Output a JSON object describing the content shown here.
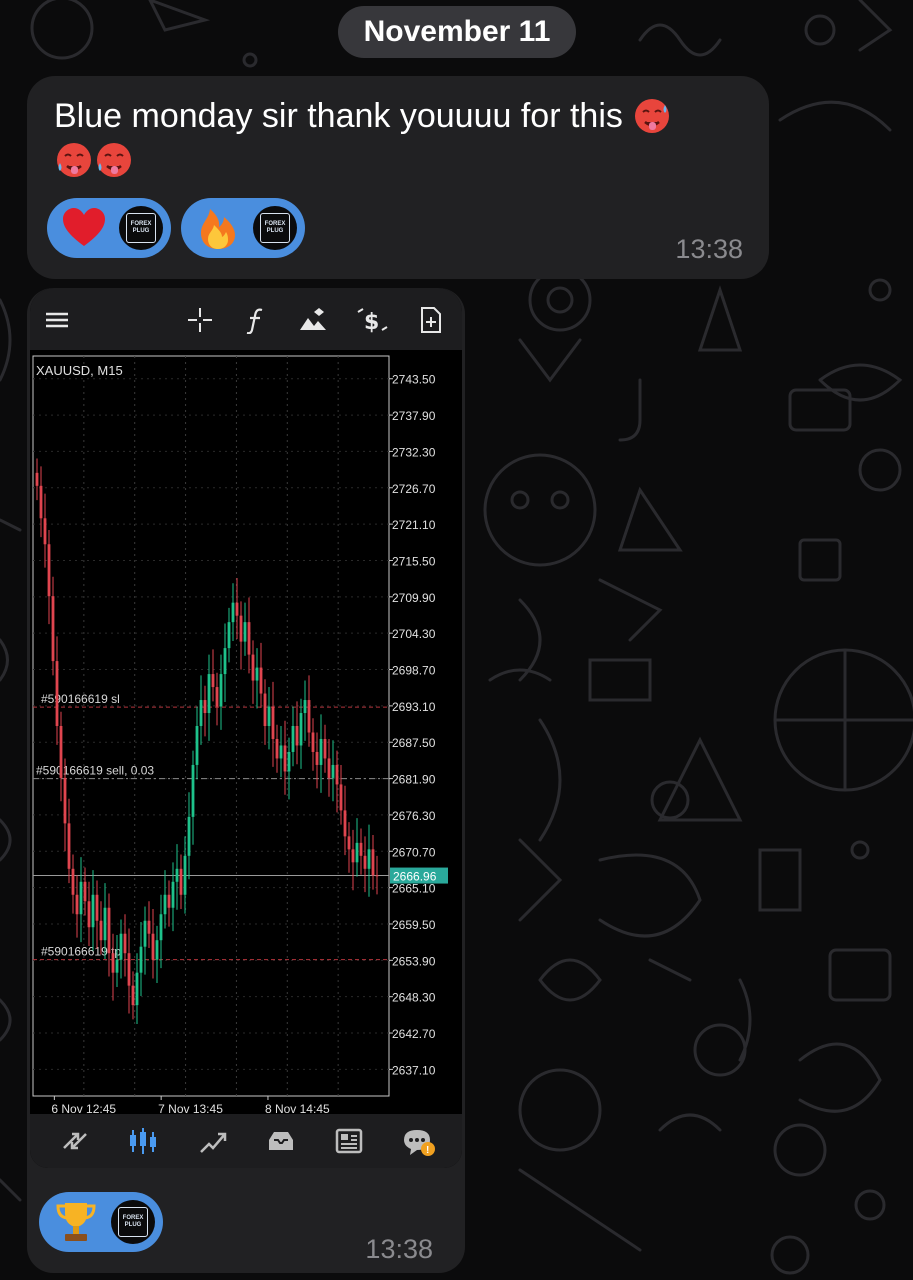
{
  "date_separator": "November 11",
  "message1": {
    "text": "Blue monday sir thank youuuu for this",
    "emoji_trailing": [
      "hot-face",
      "hot-face",
      "hot-face"
    ],
    "reactions": [
      {
        "emoji": "red-heart",
        "by": "forex-plug-avatar"
      },
      {
        "emoji": "fire",
        "by": "forex-plug-avatar"
      }
    ],
    "time": "13:38"
  },
  "avatar_text": [
    "FOREX",
    "PLUG"
  ],
  "message2": {
    "time": "13:38",
    "reactions": [
      {
        "emoji": "trophy",
        "by": "forex-plug-avatar"
      }
    ]
  },
  "trading_app": {
    "toolbar_icons": [
      "menu-icon",
      "crosshair-icon",
      "function-icon",
      "objects-icon",
      "dollar-icon",
      "new-order-icon"
    ],
    "symbol": "XAUUSD, M15",
    "price_levels": [
      "2743.50",
      "2737.90",
      "2732.30",
      "2726.70",
      "2721.10",
      "2715.50",
      "2709.90",
      "2704.30",
      "2698.70",
      "2693.10",
      "2687.50",
      "2681.90",
      "2676.30",
      "2670.70",
      "2665.10",
      "2659.50",
      "2653.90",
      "2648.30",
      "2642.70",
      "2637.10"
    ],
    "current_price": "2666.96",
    "order_lines": [
      {
        "label": "#590166619 sl",
        "price": 2692.9
      },
      {
        "label": "#590166619 sell, 0.03",
        "price": 2681.9
      },
      {
        "label": "#590166619 tp",
        "price": 2654.0
      }
    ],
    "time_labels": [
      "6 Nov 12:45",
      "7 Nov 13:45",
      "8 Nov 14:45"
    ],
    "bottom_icons": [
      "quotes-icon",
      "chart-icon",
      "trade-icon",
      "history-icon",
      "news-icon",
      "messages-icon"
    ],
    "colors": {
      "bull": "#1ec28b",
      "bear": "#e0454f",
      "current_price_bg": "#2aa99b",
      "sl_tp_line": "#b4343c",
      "entry_line": "#8a8a8a"
    }
  },
  "chart_data": {
    "type": "candlestick",
    "title": "XAUUSD, M15",
    "ylim": [
      2633.0,
      2747.0
    ],
    "y_ticks": [
      2743.5,
      2737.9,
      2732.3,
      2726.7,
      2721.1,
      2715.5,
      2709.9,
      2704.3,
      2698.7,
      2693.1,
      2687.5,
      2681.9,
      2676.3,
      2670.7,
      2665.1,
      2659.5,
      2653.9,
      2648.3,
      2642.7,
      2637.1
    ],
    "x_ticks": [
      "6 Nov 12:45",
      "7 Nov 13:45",
      "8 Nov 14:45"
    ],
    "close_series": [
      2727,
      2722,
      2718,
      2710,
      2700,
      2690,
      2682,
      2675,
      2668,
      2664,
      2661,
      2666,
      2663,
      2659,
      2664,
      2660,
      2657,
      2662,
      2655,
      2652,
      2654,
      2658,
      2655,
      2650,
      2647,
      2652,
      2656,
      2660,
      2658,
      2654,
      2657,
      2661,
      2664,
      2662,
      2666,
      2668,
      2664,
      2670,
      2676,
      2684,
      2690,
      2694,
      2692,
      2698,
      2696,
      2693,
      2698,
      2702,
      2706,
      2709,
      2707,
      2703,
      2706,
      2701,
      2697,
      2699,
      2695,
      2690,
      2693,
      2688,
      2685,
      2687,
      2683,
      2686,
      2690,
      2687,
      2692,
      2694,
      2689,
      2686,
      2684,
      2688,
      2685,
      2682,
      2684,
      2681,
      2677,
      2673,
      2671,
      2669,
      2672,
      2670,
      2668,
      2671,
      2667,
      2666.96
    ],
    "current_price": 2666.96
  }
}
